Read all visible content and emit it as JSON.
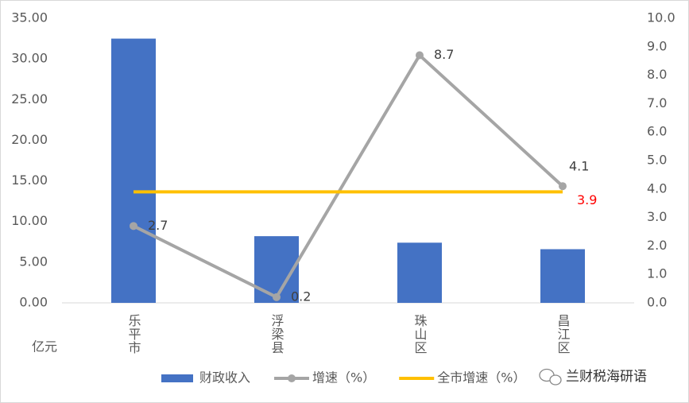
{
  "chart_data": {
    "type": "bar",
    "y_unit_label": "亿元",
    "watermark": "兰财税海研语",
    "categories": [
      "乐平市",
      "浮梁县",
      "珠山区",
      "昌江区"
    ],
    "series": [
      {
        "name": "财政收入",
        "type": "bar",
        "color": "#4472c4",
        "values": [
          32.5,
          8.2,
          7.4,
          6.6
        ],
        "data_labels": "none"
      },
      {
        "name": "增速（%）",
        "type": "line",
        "axis": "y2",
        "color": "#a5a5a5",
        "marker": true,
        "values": [
          2.7,
          0.2,
          8.7,
          4.1
        ],
        "data_labels": "all",
        "label_color": "#404040"
      },
      {
        "name": "全市增速（%）",
        "type": "line",
        "axis": "y2",
        "color": "#ffc000",
        "marker": false,
        "values": [
          3.9,
          3.9,
          3.9,
          3.9
        ],
        "data_labels": "last",
        "label_color": "#ff0000"
      }
    ],
    "ylim": [
      0,
      35
    ],
    "yticks": [
      {
        "value": 0,
        "label": "0.00"
      },
      {
        "value": 5,
        "label": "5.00"
      },
      {
        "value": 10,
        "label": "10.00"
      },
      {
        "value": 15,
        "label": "15.00"
      },
      {
        "value": 20,
        "label": "20.00"
      },
      {
        "value": 25,
        "label": "25.00"
      },
      {
        "value": 30,
        "label": "30.00"
      },
      {
        "value": 35,
        "label": "35.00"
      }
    ],
    "y2lim": [
      0,
      10
    ],
    "y2ticks": [
      {
        "value": 0,
        "label": "0.0"
      },
      {
        "value": 1,
        "label": "1.0"
      },
      {
        "value": 2,
        "label": "2.0"
      },
      {
        "value": 3,
        "label": "3.0"
      },
      {
        "value": 4,
        "label": "4.0"
      },
      {
        "value": 5,
        "label": "5.0"
      },
      {
        "value": 6,
        "label": "6.0"
      },
      {
        "value": 7,
        "label": "7.0"
      },
      {
        "value": 8,
        "label": "8.0"
      },
      {
        "value": 9,
        "label": "9.0"
      },
      {
        "value": 10,
        "label": "10.0"
      }
    ],
    "grid": false
  }
}
